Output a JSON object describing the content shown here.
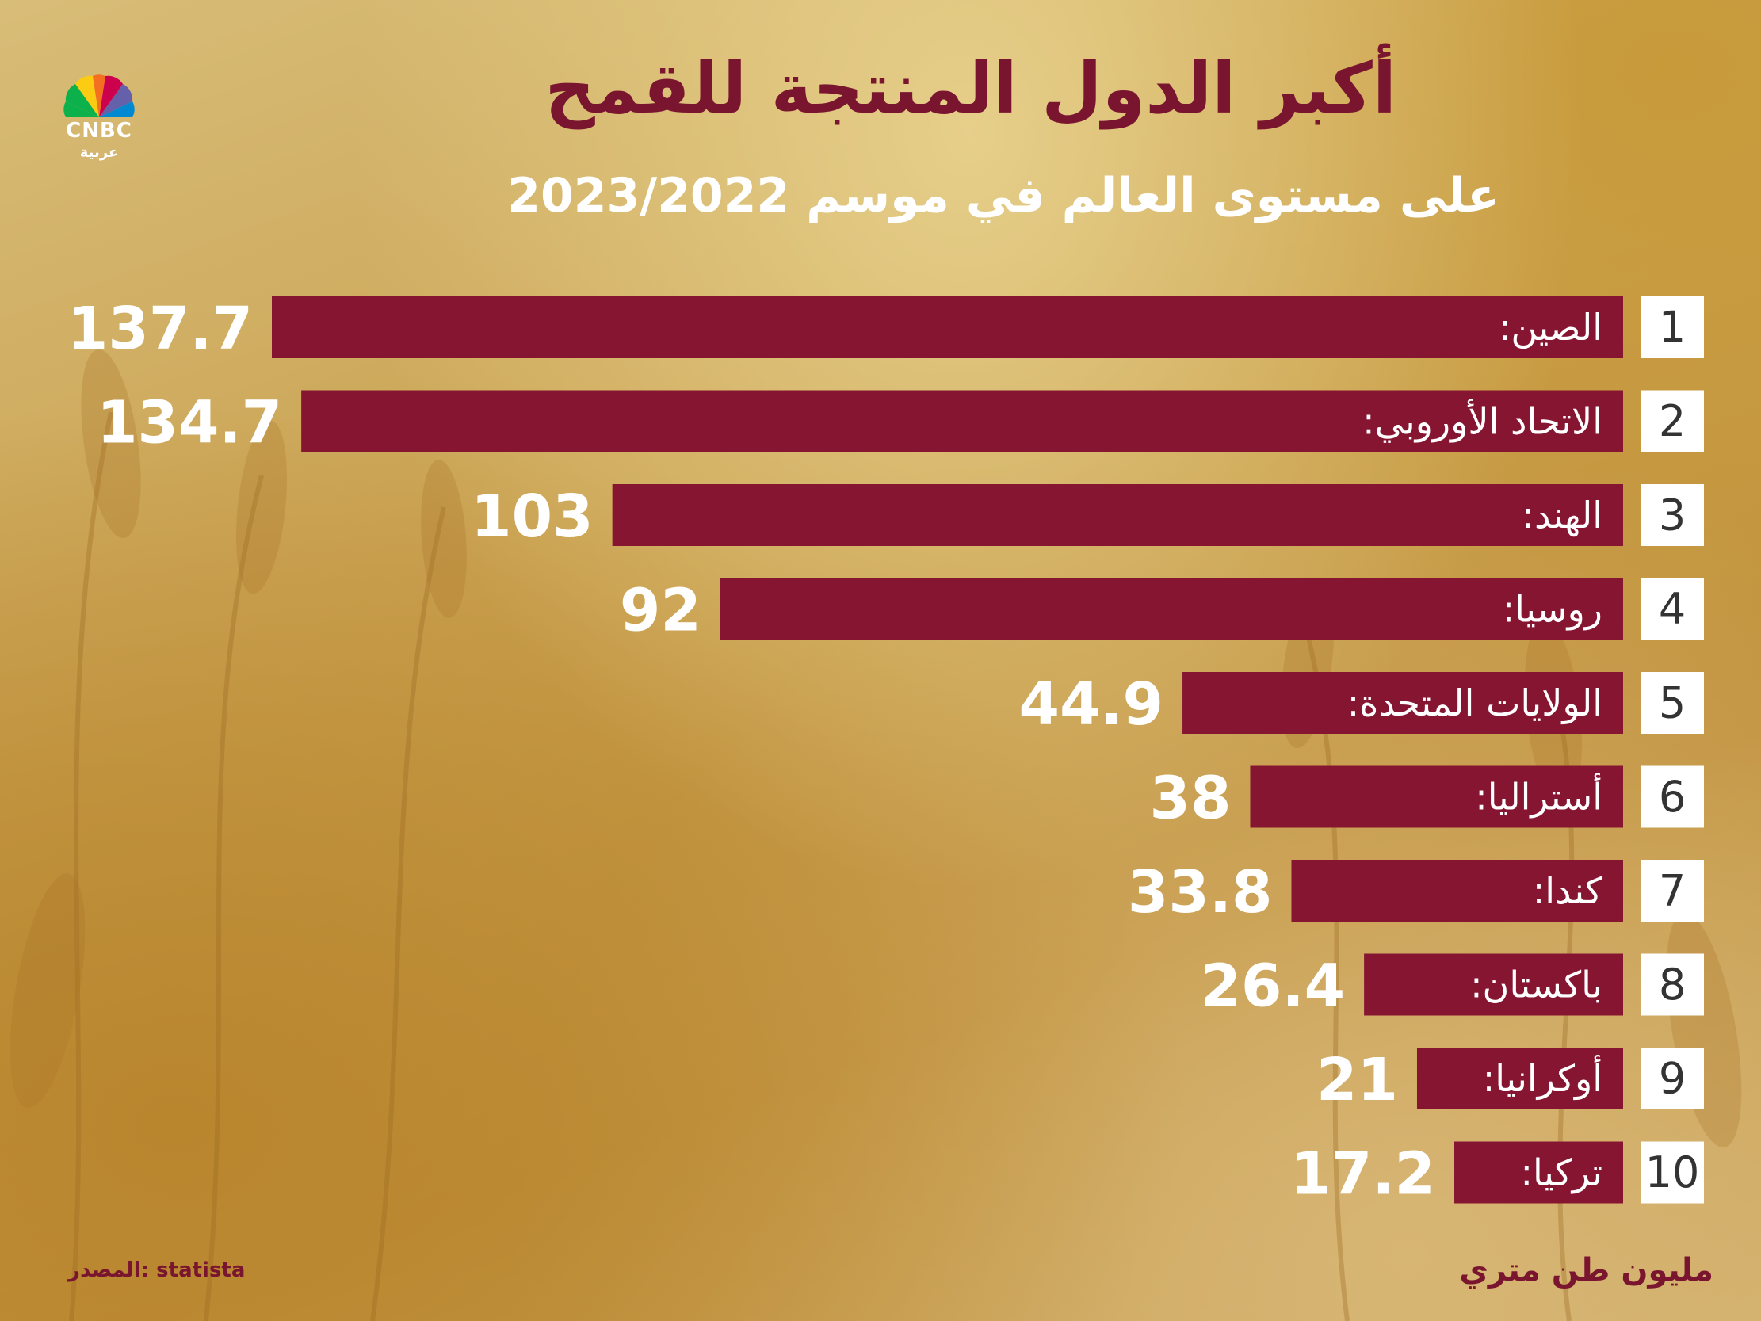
{
  "header": {
    "title": "أكبر الدول المنتجة للقمح",
    "subtitle": "على مستوى العالم في موسم 2023/2022"
  },
  "logo": {
    "name": "CNBC",
    "sub": "عربية"
  },
  "footer": {
    "source": "المصدر: statista",
    "unit": "مليون طن متري"
  },
  "colors": {
    "bar": "#861531",
    "title": "#7a1530",
    "text": "#ffffff"
  },
  "chart_data": {
    "type": "bar",
    "orientation": "horizontal",
    "title": "أكبر الدول المنتجة للقمح",
    "subtitle": "على مستوى العالم في موسم 2023/2022",
    "categories": [
      "الصين:",
      "الاتحاد الأوروبي:",
      "الهند:",
      "روسيا:",
      "الولايات المتحدة:",
      "أستراليا:",
      "كندا:",
      "باكستان:",
      "أوكرانيا:",
      "تركيا:"
    ],
    "ranks": [
      "1",
      "2",
      "3",
      "4",
      "5",
      "6",
      "7",
      "8",
      "9",
      "10"
    ],
    "values": [
      137.7,
      134.7,
      103,
      92,
      44.9,
      38,
      33.8,
      26.4,
      21,
      17.2
    ],
    "value_labels": [
      "137.7",
      "134.7",
      "103",
      "92",
      "44.9",
      "38",
      "33.8",
      "26.4",
      "21",
      "17.2"
    ],
    "unit": "مليون طن متري",
    "grid": false,
    "legend": "none"
  }
}
